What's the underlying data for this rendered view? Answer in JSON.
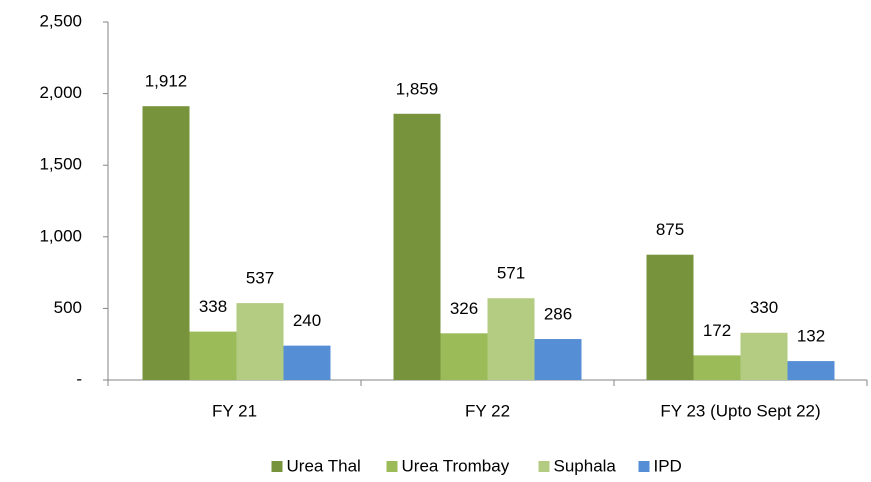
{
  "chart_data": {
    "type": "bar",
    "categories": [
      "FY 21",
      "FY 22",
      "FY 23 (Upto Sept 22)"
    ],
    "series": [
      {
        "name": "Urea Thal",
        "color": "#77933c",
        "values": [
          1912,
          1859,
          875
        ],
        "value_labels": [
          "1,912",
          "1,859",
          "875"
        ]
      },
      {
        "name": "Urea Trombay",
        "color": "#9bbb59",
        "values": [
          338,
          326,
          172
        ],
        "value_labels": [
          "338",
          "326",
          "172"
        ]
      },
      {
        "name": "Suphala",
        "color": "#b3cc82",
        "values": [
          537,
          571,
          330
        ],
        "value_labels": [
          "537",
          "571",
          "330"
        ]
      },
      {
        "name": "IPD",
        "color": "#558ed5",
        "values": [
          240,
          286,
          132
        ],
        "value_labels": [
          "240",
          "286",
          "132"
        ]
      }
    ],
    "ylim": [
      0,
      2500
    ],
    "yticks": [
      {
        "value": 0,
        "label": "-"
      },
      500,
      {
        "value": 1000,
        "label": "1,000"
      },
      {
        "value": 1500,
        "label": "1,500"
      },
      {
        "value": 2000,
        "label": "2,000"
      },
      {
        "value": 2500,
        "label": "2,500"
      }
    ],
    "legend": "bottom"
  }
}
